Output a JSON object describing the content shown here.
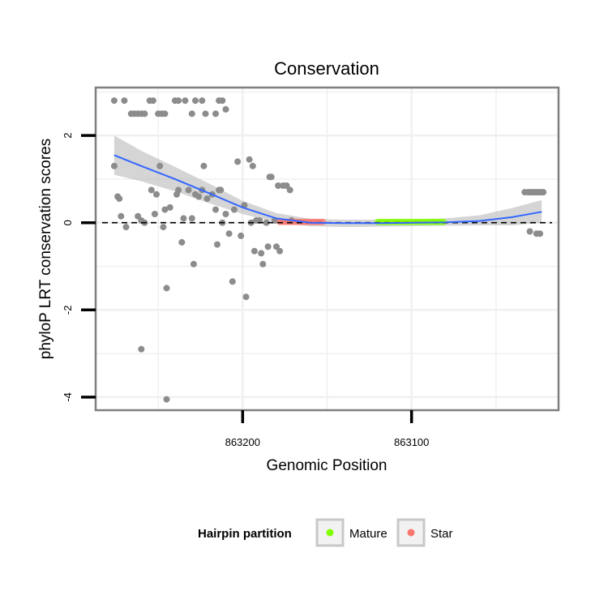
{
  "chart_data": {
    "type": "scatter",
    "title": "Conservation",
    "xlabel": "Genomic Position",
    "ylabel": "phyloP LRT conservation scores",
    "x_reversed": true,
    "xlim": [
      863287,
      863013
    ],
    "ylim": [
      -4.3,
      3.1
    ],
    "x_ticks": [
      863200,
      863100
    ],
    "y_ticks": [
      -4,
      -2,
      0,
      2
    ],
    "reference_line": {
      "y": 0,
      "style": "dashed",
      "color": "#000000"
    },
    "legend": {
      "title": "Hairpin partition",
      "position": "bottom",
      "entries": [
        {
          "label": "Mature",
          "color": "#80ff00"
        },
        {
          "label": "Star",
          "color": "#f8766d"
        }
      ]
    },
    "colors": {
      "points": "#8c8c8c",
      "smooth": "#3366ff",
      "ribbon": "#bfbfbf",
      "panel_border": "#7f7f7f",
      "grid": "#f0f0f0"
    },
    "series": [
      {
        "name": "conservation scores",
        "points": [
          [
            863276,
            2.8
          ],
          [
            863270,
            2.8
          ],
          [
            863266,
            2.5
          ],
          [
            863264,
            2.5
          ],
          [
            863262,
            2.5
          ],
          [
            863260,
            2.5
          ],
          [
            863258,
            2.5
          ],
          [
            863255,
            2.8
          ],
          [
            863253,
            2.8
          ],
          [
            863250,
            2.5
          ],
          [
            863248,
            2.5
          ],
          [
            863246,
            2.5
          ],
          [
            863240,
            2.8
          ],
          [
            863238,
            2.8
          ],
          [
            863234,
            2.8
          ],
          [
            863230,
            2.5
          ],
          [
            863228,
            2.8
          ],
          [
            863224,
            2.8
          ],
          [
            863222,
            2.5
          ],
          [
            863216,
            2.5
          ],
          [
            863214,
            2.8
          ],
          [
            863210,
            2.6
          ],
          [
            863212,
            2.8
          ],
          [
            863276,
            1.3
          ],
          [
            863274,
            0.6
          ],
          [
            863273,
            0.55
          ],
          [
            863272,
            0.15
          ],
          [
            863269,
            -0.1
          ],
          [
            863262,
            0.15
          ],
          [
            863260,
            0.05
          ],
          [
            863258,
            0.0
          ],
          [
            863254,
            0.75
          ],
          [
            863252,
            0.2
          ],
          [
            863251,
            0.65
          ],
          [
            863249,
            1.3
          ],
          [
            863247,
            -0.1
          ],
          [
            863246,
            0.3
          ],
          [
            863245,
            -1.5
          ],
          [
            863243,
            0.35
          ],
          [
            863239,
            0.65
          ],
          [
            863238,
            0.75
          ],
          [
            863236,
            -0.45
          ],
          [
            863235,
            0.1
          ],
          [
            863232,
            0.75
          ],
          [
            863230,
            0.1
          ],
          [
            863229,
            -0.95
          ],
          [
            863228,
            0.65
          ],
          [
            863226,
            0.6
          ],
          [
            863224,
            0.75
          ],
          [
            863223,
            1.3
          ],
          [
            863221,
            0.55
          ],
          [
            863218,
            0.65
          ],
          [
            863216,
            0.3
          ],
          [
            863215,
            -0.5
          ],
          [
            863214,
            0.75
          ],
          [
            863213,
            0.75
          ],
          [
            863212,
            0.0
          ],
          [
            863210,
            0.2
          ],
          [
            863208,
            -0.25
          ],
          [
            863206,
            -1.35
          ],
          [
            863205,
            0.3
          ],
          [
            863203,
            1.4
          ],
          [
            863201,
            -0.3
          ],
          [
            863199,
            0.4
          ],
          [
            863198,
            -1.7
          ],
          [
            863196,
            1.45
          ],
          [
            863195,
            0.0
          ],
          [
            863194,
            1.3
          ],
          [
            863193,
            -0.65
          ],
          [
            863192,
            0.05
          ],
          [
            863190,
            0.05
          ],
          [
            863189,
            -0.7
          ],
          [
            863188,
            -0.95
          ],
          [
            863186,
            0.0
          ],
          [
            863185,
            -0.55
          ],
          [
            863184,
            1.05
          ],
          [
            863183,
            1.05
          ],
          [
            863181,
            0.05
          ],
          [
            863180,
            -0.55
          ],
          [
            863179,
            0.85
          ],
          [
            863178,
            -0.65
          ],
          [
            863176,
            0.85
          ],
          [
            863174,
            0.85
          ],
          [
            863172,
            0.75
          ],
          [
            863171,
            0.05
          ],
          [
            863260,
            -2.9
          ],
          [
            863245,
            -4.05
          ],
          [
            863033,
            0.7
          ],
          [
            863031,
            0.7
          ],
          [
            863030,
            0.7
          ],
          [
            863029,
            0.7
          ],
          [
            863028,
            0.7
          ],
          [
            863027,
            0.7
          ],
          [
            863026,
            0.7
          ],
          [
            863025,
            0.7
          ],
          [
            863024,
            0.7
          ],
          [
            863023,
            0.7
          ],
          [
            863022,
            0.7
          ],
          [
            863030,
            -0.2
          ],
          [
            863026,
            -0.25
          ],
          [
            863024,
            -0.25
          ]
        ]
      },
      {
        "name": "Star",
        "x_range": [
          863178,
          863152
        ],
        "y": 0.02
      },
      {
        "name": "Mature",
        "x_range": [
          863120,
          863080
        ],
        "y": 0.02
      },
      {
        "name": "loess fit",
        "x": [
          863276,
          863260,
          863240,
          863220,
          863200,
          863180,
          863160,
          863140,
          863120,
          863100,
          863080,
          863060,
          863040,
          863023
        ],
        "y": [
          1.55,
          1.3,
          1.0,
          0.68,
          0.35,
          0.1,
          0.0,
          -0.01,
          -0.01,
          0.0,
          0.01,
          0.04,
          0.13,
          0.25
        ],
        "lower": [
          1.1,
          0.95,
          0.72,
          0.45,
          0.2,
          0.0,
          -0.08,
          -0.1,
          -0.09,
          -0.08,
          -0.07,
          -0.06,
          -0.06,
          0.0
        ],
        "upper": [
          2.0,
          1.65,
          1.28,
          0.9,
          0.5,
          0.22,
          0.09,
          0.07,
          0.07,
          0.08,
          0.1,
          0.17,
          0.34,
          0.52
        ]
      }
    ]
  }
}
